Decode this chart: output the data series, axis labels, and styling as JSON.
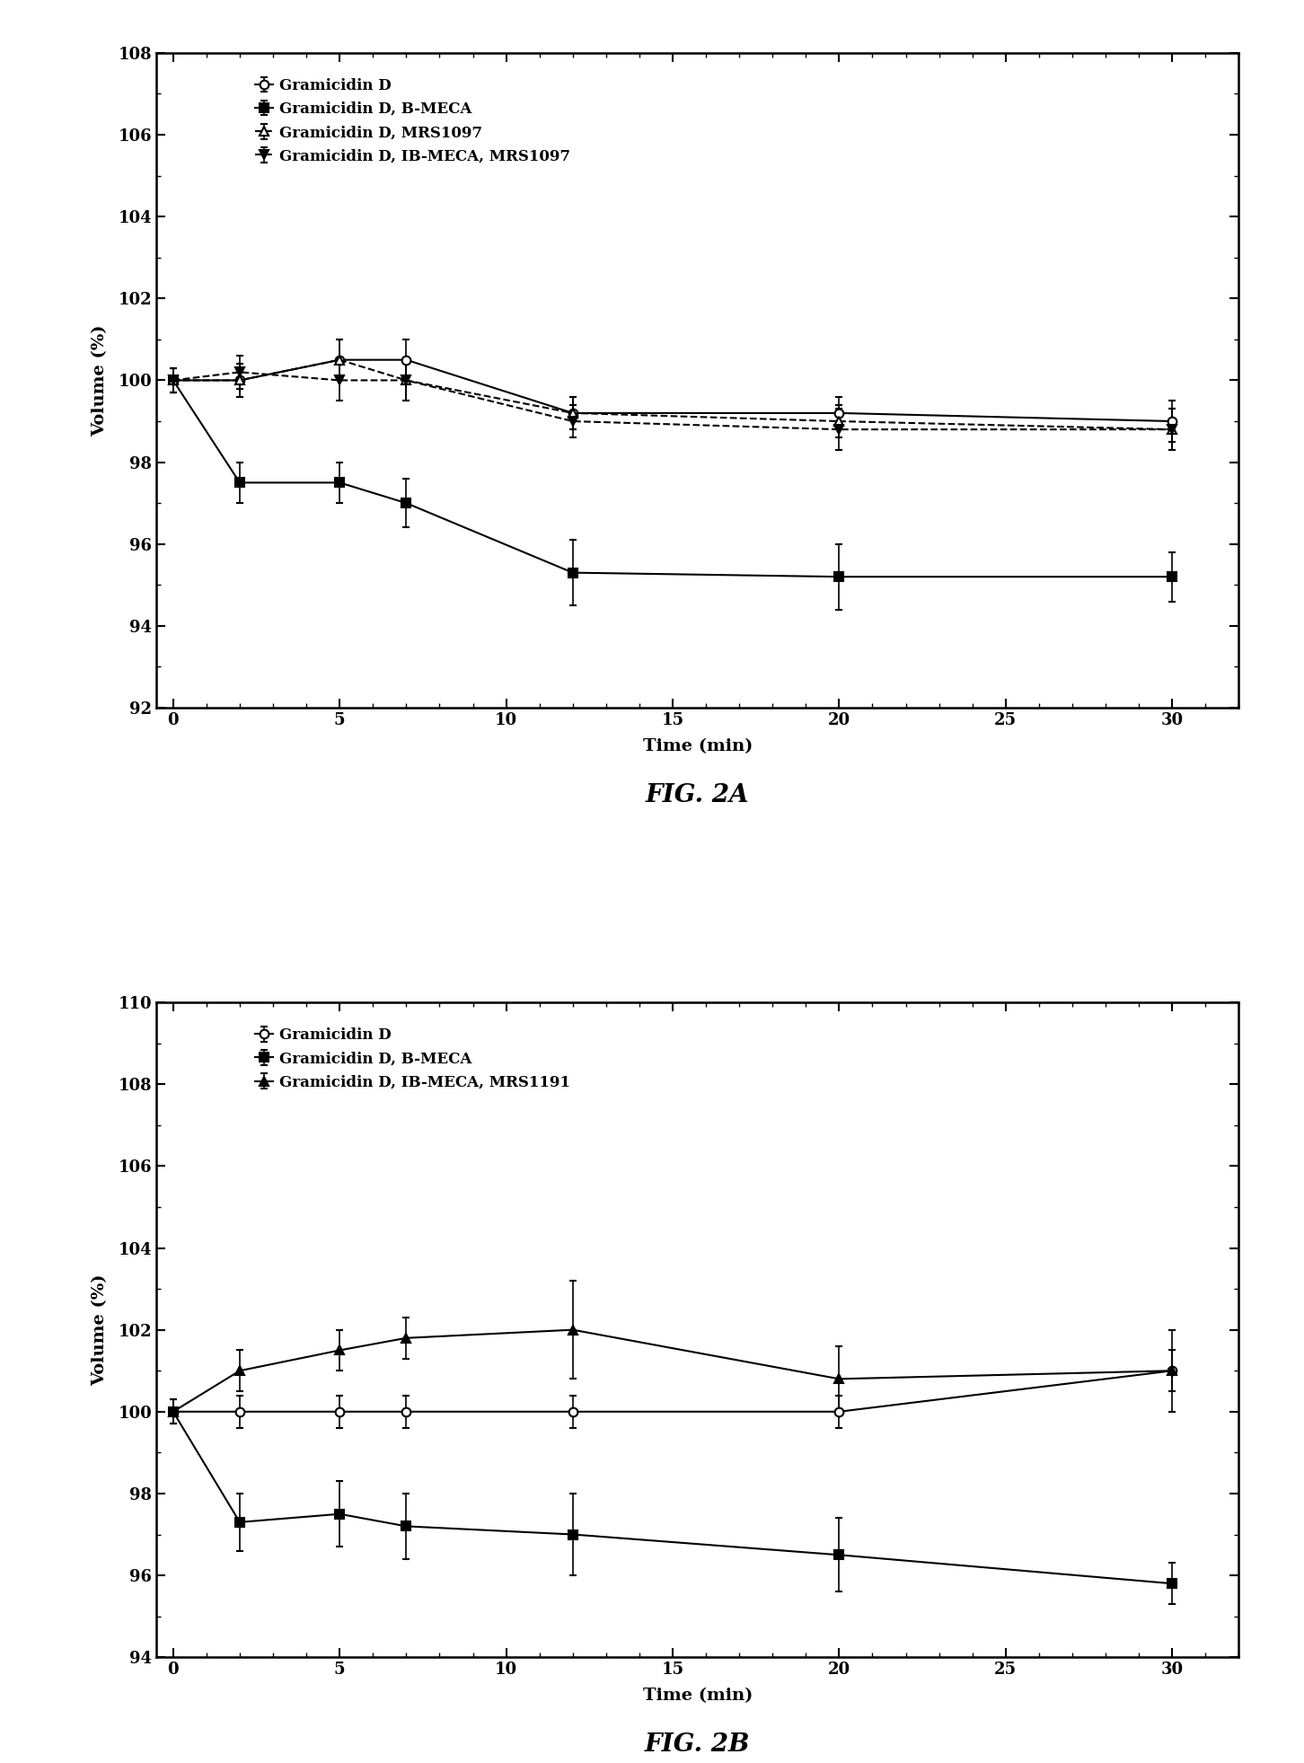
{
  "fig2a": {
    "title": "FIG. 2A",
    "xlabel": "Time (min)",
    "ylabel": "Volume (%)",
    "ylim": [
      92,
      108
    ],
    "xlim": [
      -0.5,
      32
    ],
    "yticks": [
      92,
      94,
      96,
      98,
      100,
      102,
      104,
      106,
      108
    ],
    "xticks": [
      0,
      5,
      10,
      15,
      20,
      25,
      30
    ],
    "series": [
      {
        "label": "Gramicidin D",
        "x": [
          0,
          2,
          5,
          7,
          12,
          20,
          30
        ],
        "y": [
          100.0,
          100.0,
          100.5,
          100.5,
          99.2,
          99.2,
          99.0
        ],
        "yerr": [
          0.3,
          0.4,
          0.5,
          0.5,
          0.4,
          0.4,
          0.5
        ],
        "marker": "o",
        "fillstyle": "none",
        "color": "black",
        "linestyle": "-"
      },
      {
        "label": "Gramicidin D, B-MECA",
        "x": [
          0,
          2,
          5,
          7,
          12,
          20,
          30
        ],
        "y": [
          100.0,
          97.5,
          97.5,
          97.0,
          95.3,
          95.2,
          95.2
        ],
        "yerr": [
          0.3,
          0.5,
          0.5,
          0.6,
          0.8,
          0.8,
          0.6
        ],
        "marker": "s",
        "fillstyle": "full",
        "color": "black",
        "linestyle": "-"
      },
      {
        "label": "Gramicidin D, MRS1097",
        "x": [
          0,
          2,
          5,
          7,
          12,
          20,
          30
        ],
        "y": [
          100.0,
          100.0,
          100.5,
          100.0,
          99.2,
          99.0,
          98.8
        ],
        "yerr": [
          0.3,
          0.4,
          0.5,
          0.5,
          0.4,
          0.4,
          0.5
        ],
        "marker": "^",
        "fillstyle": "none",
        "color": "black",
        "linestyle": "--"
      },
      {
        "label": "Gramicidin D, IB-MECA, MRS1097",
        "x": [
          0,
          2,
          5,
          7,
          12,
          20,
          30
        ],
        "y": [
          100.0,
          100.2,
          100.0,
          100.0,
          99.0,
          98.8,
          98.8
        ],
        "yerr": [
          0.3,
          0.4,
          0.5,
          0.5,
          0.4,
          0.5,
          0.5
        ],
        "marker": "v",
        "fillstyle": "full",
        "color": "black",
        "linestyle": "--"
      }
    ]
  },
  "fig2b": {
    "title": "FIG. 2B",
    "xlabel": "Time (min)",
    "ylabel": "Volume (%)",
    "ylim": [
      94,
      110
    ],
    "xlim": [
      -0.5,
      32
    ],
    "yticks": [
      94,
      96,
      98,
      100,
      102,
      104,
      106,
      108,
      110
    ],
    "xticks": [
      0,
      5,
      10,
      15,
      20,
      25,
      30
    ],
    "series": [
      {
        "label": "Gramicidin D",
        "x": [
          0,
          2,
          5,
          7,
          12,
          20,
          30
        ],
        "y": [
          100.0,
          100.0,
          100.0,
          100.0,
          100.0,
          100.0,
          101.0
        ],
        "yerr": [
          0.3,
          0.4,
          0.4,
          0.4,
          0.4,
          0.4,
          0.5
        ],
        "marker": "o",
        "fillstyle": "none",
        "color": "black",
        "linestyle": "-"
      },
      {
        "label": "Gramicidin D, B-MECA",
        "x": [
          0,
          2,
          5,
          7,
          12,
          20,
          30
        ],
        "y": [
          100.0,
          97.3,
          97.5,
          97.2,
          97.0,
          96.5,
          95.8
        ],
        "yerr": [
          0.3,
          0.7,
          0.8,
          0.8,
          1.0,
          0.9,
          0.5
        ],
        "marker": "s",
        "fillstyle": "full",
        "color": "black",
        "linestyle": "-"
      },
      {
        "label": "Gramicidin D, IB-MECA, MRS1191",
        "x": [
          0,
          2,
          5,
          7,
          12,
          20,
          30
        ],
        "y": [
          100.0,
          101.0,
          101.5,
          101.8,
          102.0,
          100.8,
          101.0
        ],
        "yerr": [
          0.3,
          0.5,
          0.5,
          0.5,
          1.2,
          0.8,
          1.0
        ],
        "marker": "^",
        "fillstyle": "full",
        "color": "black",
        "linestyle": "-"
      }
    ]
  },
  "background_color": "#ffffff",
  "text_color": "#000000",
  "fig_width": 14.52,
  "fig_height": 19.63,
  "dpi": 100
}
